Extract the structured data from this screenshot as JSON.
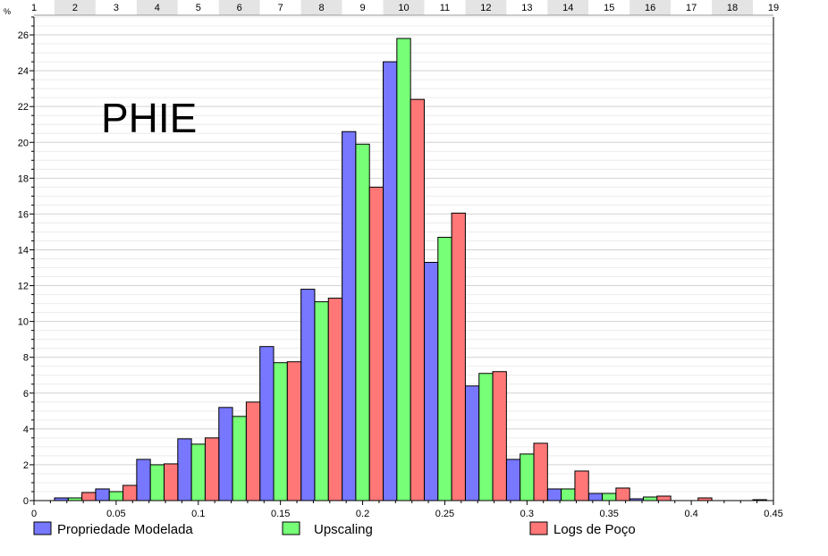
{
  "chart_data": {
    "type": "bar",
    "title": "PHIE",
    "ylabel": "%",
    "xlim": [
      0,
      0.45
    ],
    "ylim": [
      0,
      27
    ],
    "x_ticks": [
      0,
      0.05,
      0.1,
      0.15,
      0.2,
      0.25,
      0.3,
      0.35,
      0.4,
      0.45
    ],
    "y_ticks": [
      0,
      2,
      4,
      6,
      8,
      10,
      12,
      14,
      16,
      18,
      20,
      22,
      24,
      26
    ],
    "bin_width": 0.025,
    "bin_labels": [
      "1",
      "2",
      "3",
      "4",
      "5",
      "6",
      "7",
      "8",
      "9",
      "10",
      "11",
      "12",
      "13",
      "14",
      "15",
      "16",
      "17",
      "18",
      "19"
    ],
    "grid": true,
    "legend_position": "bottom",
    "series": [
      {
        "name": "Propriedade Modelada",
        "color": "#7777ff",
        "values": [
          0,
          0.15,
          0.65,
          2.3,
          3.45,
          5.2,
          8.6,
          11.8,
          20.6,
          24.5,
          13.3,
          6.4,
          2.3,
          0.65,
          0.4,
          0.1,
          0,
          0,
          0.05
        ]
      },
      {
        "name": "Upscaling",
        "color": "#77ff77",
        "values": [
          0,
          0.15,
          0.5,
          2.0,
          3.15,
          4.7,
          7.7,
          11.1,
          19.9,
          25.8,
          14.7,
          7.1,
          2.6,
          0.65,
          0.4,
          0.2,
          0,
          0,
          0
        ]
      },
      {
        "name": "Logs de Poço",
        "color": "#ff7777",
        "values": [
          0,
          0.45,
          0.85,
          2.05,
          3.5,
          5.5,
          7.75,
          11.3,
          17.5,
          22.4,
          16.05,
          7.2,
          3.2,
          1.65,
          0.7,
          0.25,
          0.15,
          0,
          0
        ]
      }
    ]
  }
}
